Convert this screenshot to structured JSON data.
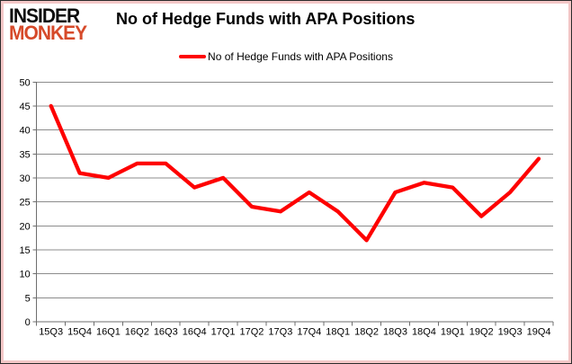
{
  "logo": {
    "line1": "INSIDER",
    "line2": "MONKEY"
  },
  "header": {
    "title": "No of Hedge Funds with APA Positions"
  },
  "legend": {
    "label": "No of Hedge Funds with APA Positions"
  },
  "chart_data": {
    "type": "line",
    "title": "No of Hedge Funds with APA Positions",
    "series_name": "No of Hedge Funds with APA Positions",
    "categories": [
      "15Q3",
      "15Q4",
      "16Q1",
      "16Q2",
      "16Q3",
      "16Q4",
      "17Q1",
      "17Q2",
      "17Q3",
      "17Q4",
      "18Q1",
      "18Q2",
      "18Q3",
      "18Q4",
      "19Q1",
      "19Q2",
      "19Q3",
      "19Q4"
    ],
    "values": [
      45,
      31,
      30,
      33,
      33,
      28,
      30,
      24,
      23,
      27,
      23,
      17,
      27,
      29,
      28,
      22,
      27,
      34
    ],
    "xlabel": "",
    "ylabel": "",
    "ylim": [
      0,
      50
    ],
    "ytick_step": 5,
    "grid": true,
    "legend_position": "top-center",
    "line_color": "#fe0000"
  },
  "colors": {
    "line": "#fe0000",
    "logo_insider": "#0d0d0d",
    "logo_monkey": "#d64a2a",
    "gridline": "#8c8c8c",
    "axis": "#6e6e6e",
    "border_outer": "#2b2b2b",
    "border_inner": "#f4c7c7",
    "background": "#ffffff",
    "text": "#000000"
  }
}
